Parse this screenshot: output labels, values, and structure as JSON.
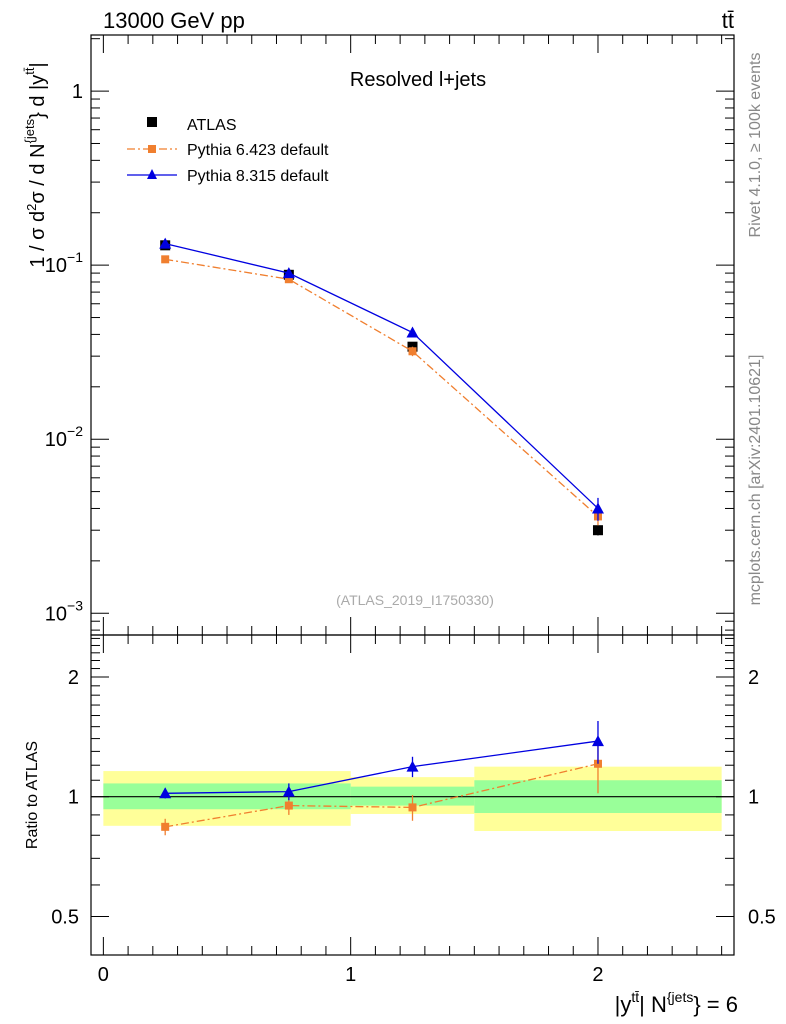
{
  "header": {
    "energy_label": "13000 GeV pp",
    "process_label": "tt̄"
  },
  "side_labels": {
    "rivet": "Rivet 4.1.0, ≥ 100k events",
    "mcplots": "mcplots.cern.ch [arXiv:2401.10621]"
  },
  "chart_data": [
    {
      "type": "line",
      "panel": "main",
      "title": "Resolved l+jets",
      "watermark": "(ATLAS_2019_I1750330)",
      "ylabel": "1 / σ d²σ / d N^{jets} } d |y^{tt̄}|",
      "yscale": "log",
      "ylim": [
        0.00075,
        2.1
      ],
      "xlim": [
        -0.05,
        2.55
      ],
      "y_tick_labels": [
        "10^-3",
        "10^-2",
        "10^-1",
        "1"
      ],
      "x": [
        0.25,
        0.75,
        1.25,
        2.0
      ],
      "x_bins": [
        [
          0,
          0.5
        ],
        [
          0.5,
          1.0
        ],
        [
          1.0,
          1.5
        ],
        [
          1.5,
          2.5
        ]
      ],
      "series": [
        {
          "name": "ATLAS",
          "color": "#000000",
          "marker": "square",
          "values": [
            0.13,
            0.088,
            0.034,
            0.003
          ],
          "errors": [
            0.006,
            0.004,
            0.002,
            0.0002
          ]
        },
        {
          "name": "Pythia 6.423 default",
          "color": "#f07f2f",
          "marker": "square",
          "dash": "dashdot",
          "values": [
            0.108,
            0.083,
            0.032,
            0.0036
          ],
          "errors": [
            0.003,
            0.002,
            0.002,
            0.0004
          ]
        },
        {
          "name": "Pythia 8.315 default",
          "color": "#0000e0",
          "marker": "triangle",
          "values": [
            0.133,
            0.09,
            0.041,
            0.004
          ],
          "errors": [
            0.003,
            0.002,
            0.0025,
            0.0006
          ]
        }
      ]
    },
    {
      "type": "line",
      "panel": "ratio",
      "ylabel": "Ratio to ATLAS",
      "xlabel": "|y^{tt̄}| N^{jets} } = 6",
      "yscale": "log",
      "ylim": [
        0.4,
        2.55
      ],
      "xlim": [
        -0.05,
        2.55
      ],
      "y_tick_labels": [
        "0.5",
        "1",
        "2"
      ],
      "x_tick_labels": [
        "0",
        "1",
        "2"
      ],
      "x": [
        0.25,
        0.75,
        1.25,
        2.0
      ],
      "bands": [
        {
          "x0": 0,
          "x1": 1.0,
          "inner": [
            0.93,
            1.08
          ],
          "outer": [
            0.845,
            1.16
          ]
        },
        {
          "x0": 1.0,
          "x1": 1.5,
          "inner": [
            0.95,
            1.06
          ],
          "outer": [
            0.905,
            1.12
          ]
        },
        {
          "x0": 1.5,
          "x1": 2.5,
          "inner": [
            0.91,
            1.1
          ],
          "outer": [
            0.82,
            1.19
          ]
        }
      ],
      "series": [
        {
          "name": "Pythia 6.423 default",
          "color": "#f07f2f",
          "marker": "square",
          "dash": "dashdot",
          "values": [
            0.84,
            0.95,
            0.94,
            1.21
          ],
          "errors": [
            0.04,
            0.05,
            0.07,
            0.19
          ]
        },
        {
          "name": "Pythia 8.315 default",
          "color": "#0000e0",
          "marker": "triangle",
          "values": [
            1.02,
            1.03,
            1.19,
            1.38
          ],
          "errors": [
            0.03,
            0.05,
            0.07,
            0.17
          ]
        }
      ]
    }
  ]
}
